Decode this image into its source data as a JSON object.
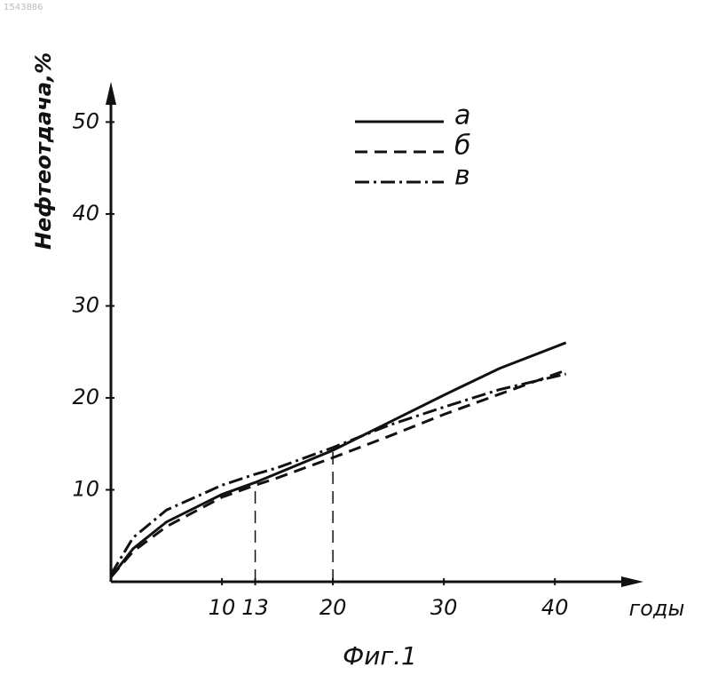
{
  "chart_data": {
    "type": "line",
    "corner_text": "1543886",
    "title": "Фиг.1",
    "xlabel": "годы",
    "ylabel": "Нефтеотдача,%",
    "x": [
      0,
      2,
      5,
      10,
      13,
      15,
      20,
      25,
      30,
      35,
      41
    ],
    "series": [
      {
        "name": "а",
        "color": "#111111",
        "style": "solid",
        "values": [
          0.5,
          3.6,
          6.5,
          9.5,
          10.8,
          11.8,
          14.3,
          17.3,
          20.3,
          23.2,
          26
        ]
      },
      {
        "name": "б",
        "color": "#111111",
        "style": "dashed",
        "values": [
          0.5,
          3.3,
          6.0,
          9.2,
          10.5,
          11.3,
          13.5,
          15.8,
          18.2,
          20.4,
          23
        ]
      },
      {
        "name": "в",
        "color": "#111111",
        "style": "dashdot",
        "values": [
          0.8,
          4.8,
          7.8,
          10.5,
          11.7,
          12.4,
          14.6,
          17.0,
          19.0,
          20.9,
          22.6
        ]
      }
    ],
    "reference_lines": [
      {
        "x": 13,
        "y": 10.5
      },
      {
        "x": 20,
        "y": 14.5
      }
    ],
    "xlim": [
      0,
      47.5
    ],
    "ylim": [
      0,
      54
    ],
    "xticks": [
      10,
      13,
      20,
      30,
      40
    ],
    "yticks": [
      10,
      20,
      30,
      40,
      50
    ],
    "legend": "top",
    "grid": false
  }
}
